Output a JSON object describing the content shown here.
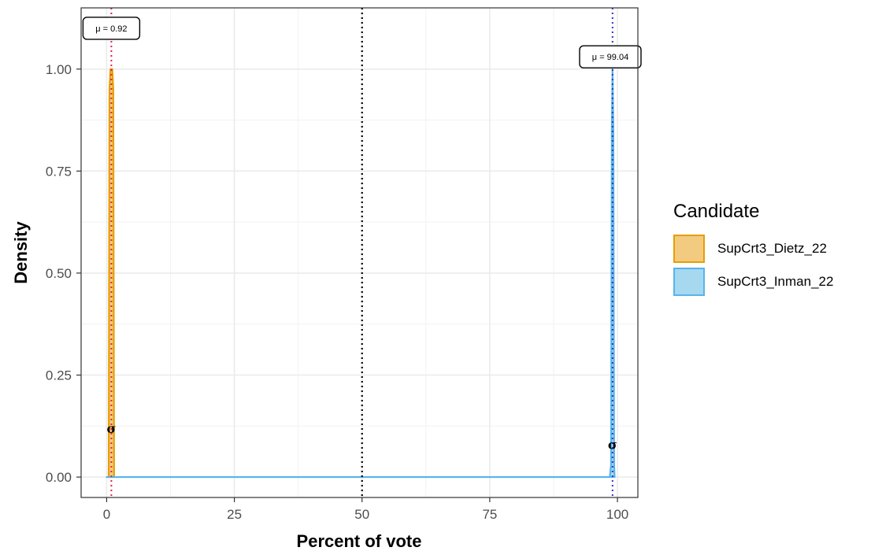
{
  "chart_data": {
    "type": "area",
    "xlabel": "Percent of vote",
    "ylabel": "Density",
    "xlim": [
      -5,
      104
    ],
    "ylim": [
      -0.05,
      1.15
    ],
    "x_ticks": [
      0,
      25,
      50,
      75,
      100
    ],
    "y_ticks": [
      0.0,
      0.25,
      0.5,
      0.75,
      1.0
    ],
    "grid": true,
    "reference_line": {
      "x": 50,
      "style": "dotted",
      "color": "#000000"
    },
    "legend": {
      "title": "Candidate",
      "position": "right"
    },
    "series": [
      {
        "name": "SupCrt3_Dietz_22",
        "fill": "#f2cb80",
        "stroke": "#e69f00",
        "mean_line_color": "#e0204a",
        "mean": 0.92,
        "mean_label": "μ = 0.92",
        "sigma_label": "σ",
        "sigma_y": 0.12,
        "x": [
          0.4,
          0.55,
          0.75,
          0.92,
          1.1,
          1.3,
          1.45
        ],
        "y": [
          0.0,
          0.95,
          1.0,
          1.0,
          1.0,
          0.95,
          0.0
        ]
      },
      {
        "name": "SupCrt3_Inman_22",
        "fill": "#a6d8f0",
        "stroke": "#56b4e9",
        "mean_line_color": "#3333cc",
        "mean": 99.04,
        "mean_label": "μ = 99.04",
        "sigma_label": "σ",
        "sigma_y": 0.08,
        "x": [
          0,
          98.5,
          98.75,
          98.9,
          99.04,
          99.2,
          99.35,
          99.45
        ],
        "y": [
          0.0,
          0.0,
          0.03,
          0.85,
          1.0,
          0.85,
          0.03,
          0.0
        ]
      }
    ]
  }
}
